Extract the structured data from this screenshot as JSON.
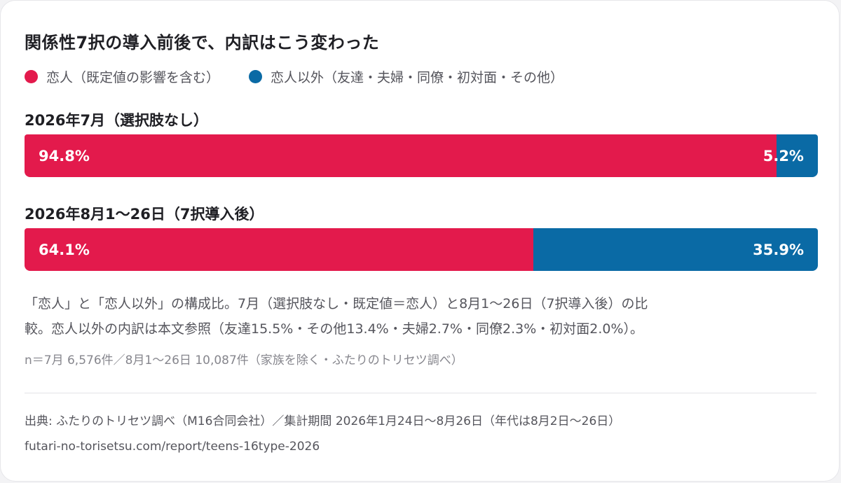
{
  "colors": {
    "lover": "#e31a4c",
    "non_lover": "#0a6aa5"
  },
  "chart_data": {
    "type": "bar",
    "orientation": "horizontal-stacked-100",
    "title": "関係性7択の導入前後で、内訳はこう変わった",
    "legend": [
      "恋人（既定値の影響を含む）",
      "恋人以外（友達・夫婦・同僚・初対面・その他）"
    ],
    "legend_placement": "top-left",
    "categories": [
      "2026年7月（選択肢なし）",
      "2026年8月1〜26日（7択導入後）"
    ],
    "series": [
      {
        "name": "恋人（既定値の影響を含む）",
        "values": [
          94.8,
          64.1
        ],
        "labels": [
          "94.8%",
          "64.1%"
        ]
      },
      {
        "name": "恋人以外（友達・夫婦・同僚・初対面・その他）",
        "values": [
          5.2,
          35.9
        ],
        "labels": [
          "5.2%",
          "35.9%"
        ]
      }
    ],
    "xlim": [
      0,
      100
    ],
    "grid": false
  },
  "notes": {
    "line1": "「恋人」と「恋人以外」の構成比。7月（選択肢なし・既定値＝恋人）と8月1〜26日（7択導入後）の比",
    "line2": "較。恋人以外の内訳は本文参照（友達15.5%・その他13.4%・夫婦2.7%・同僚2.3%・初対面2.0%）。",
    "sample": "n＝7月 6,576件／8月1〜26日 10,087件（家族を除く・ふたりのトリセツ調べ）"
  },
  "footer": {
    "source": "出典: ふたりのトリセツ調べ（M16合同会社）／集計期間 2026年1月24日〜8月26日（年代は8月2日〜26日）",
    "url": "futari-no-torisetsu.com/report/teens-16type-2026"
  }
}
